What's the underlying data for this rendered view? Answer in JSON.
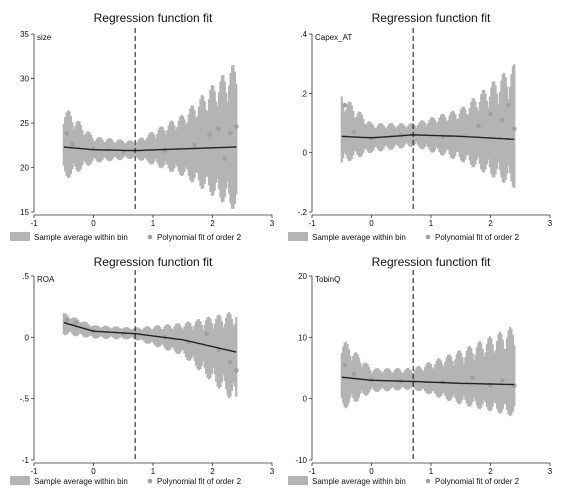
{
  "figure": {
    "legend_band_label": "Sample average within bin",
    "legend_fit_label": "Polynomial fit of order 2",
    "colors": {
      "band": "#b4b4b4",
      "points": "#a0a0a0",
      "fit": "#222222",
      "axis": "#333333"
    }
  },
  "chart_data": [
    {
      "type": "scatter",
      "title": "Regression function fit",
      "ylabel": "size",
      "xlabel": "",
      "xlim": [
        -1,
        3
      ],
      "ylim": [
        15,
        35
      ],
      "xticks": [
        "-1",
        "0",
        "1",
        "2",
        "3"
      ],
      "yticks": [
        "15",
        "20",
        "25",
        "30",
        "35"
      ],
      "ytick_values": [
        15,
        20,
        25,
        30,
        35
      ],
      "cutoff": 0.7,
      "x_range": [
        -0.5,
        2.4
      ],
      "fit": {
        "x": [
          -0.5,
          0.0,
          0.7,
          1.5,
          2.4
        ],
        "y": [
          22.3,
          22.0,
          21.9,
          22.1,
          22.3
        ]
      },
      "band": {
        "lo": [
          18.5,
          20.5,
          21.0,
          19.0,
          15.0
        ],
        "hi": [
          27.0,
          23.5,
          23.0,
          26.0,
          32.0
        ]
      },
      "points": [
        [
          -0.45,
          23.8
        ],
        [
          -0.35,
          22.6
        ],
        [
          0.0,
          22.1
        ],
        [
          0.5,
          21.8
        ],
        [
          1.2,
          21.9
        ],
        [
          1.7,
          22.5
        ],
        [
          1.95,
          23.7
        ],
        [
          2.1,
          24.3
        ],
        [
          2.2,
          21.0
        ],
        [
          2.3,
          23.9
        ],
        [
          2.4,
          24.6
        ]
      ]
    },
    {
      "type": "scatter",
      "title": "Regression function fit",
      "ylabel": "Capex_AT",
      "xlabel": "",
      "xlim": [
        -1,
        3
      ],
      "ylim": [
        -0.2,
        0.4
      ],
      "xticks": [
        "-1",
        "0",
        "1",
        "2",
        "3"
      ],
      "yticks": [
        ".4",
        ".2",
        "0",
        "-.2"
      ],
      "ytick_values": [
        0.4,
        0.2,
        0.0,
        -0.2
      ],
      "cutoff": 0.7,
      "x_range": [
        -0.5,
        2.4
      ],
      "fit": {
        "x": [
          -0.5,
          0.0,
          0.7,
          1.5,
          2.4
        ],
        "y": [
          0.055,
          0.05,
          0.06,
          0.055,
          0.045
        ]
      },
      "band": {
        "lo": [
          -0.04,
          0.0,
          0.02,
          -0.03,
          -0.12
        ],
        "hi": [
          0.2,
          0.1,
          0.1,
          0.15,
          0.3
        ]
      },
      "points": [
        [
          -0.45,
          0.16
        ],
        [
          -0.3,
          0.07
        ],
        [
          0.0,
          0.05
        ],
        [
          0.5,
          0.06
        ],
        [
          1.2,
          0.055
        ],
        [
          1.8,
          0.09
        ],
        [
          2.0,
          0.13
        ],
        [
          2.2,
          0.11
        ],
        [
          2.3,
          0.16
        ],
        [
          2.4,
          0.08
        ]
      ]
    },
    {
      "type": "scatter",
      "title": "Regression function fit",
      "ylabel": "ROA",
      "xlabel": "",
      "xlim": [
        -1,
        3
      ],
      "ylim": [
        -1,
        0.5
      ],
      "xticks": [
        "-1",
        "0",
        "1",
        "2",
        "3"
      ],
      "yticks": [
        ".5",
        "0",
        "-.5",
        "-1"
      ],
      "ytick_values": [
        0.5,
        0.0,
        -0.5,
        -1.0
      ],
      "cutoff": 0.7,
      "x_range": [
        -0.5,
        2.4
      ],
      "fit": {
        "x": [
          -0.5,
          0.0,
          0.7,
          1.5,
          2.4
        ],
        "y": [
          0.12,
          0.05,
          0.03,
          -0.02,
          -0.12
        ]
      },
      "band": {
        "lo": [
          0.02,
          -0.01,
          -0.02,
          -0.15,
          -0.55
        ],
        "hi": [
          0.2,
          0.1,
          0.08,
          0.12,
          0.22
        ]
      },
      "points": [
        [
          -0.45,
          0.14
        ],
        [
          -0.3,
          0.12
        ],
        [
          0.0,
          0.05
        ],
        [
          0.5,
          0.03
        ],
        [
          1.2,
          0.0
        ],
        [
          1.6,
          -0.04
        ],
        [
          1.9,
          0.03
        ],
        [
          2.1,
          -0.1
        ],
        [
          2.3,
          -0.2
        ],
        [
          2.4,
          -0.27
        ]
      ]
    },
    {
      "type": "scatter",
      "title": "Regression function fit",
      "ylabel": "TobinQ",
      "xlabel": "",
      "xlim": [
        -1,
        3
      ],
      "ylim": [
        -10,
        20
      ],
      "xticks": [
        "-1",
        "0",
        "1",
        "2",
        "3"
      ],
      "yticks": [
        "20",
        "10",
        "0",
        "-10"
      ],
      "ytick_values": [
        20,
        10,
        0,
        -10
      ],
      "cutoff": 0.7,
      "x_range": [
        -0.5,
        2.4
      ],
      "fit": {
        "x": [
          -0.5,
          0.0,
          0.7,
          1.5,
          2.4
        ],
        "y": [
          3.5,
          3.0,
          2.8,
          2.5,
          2.3
        ]
      },
      "band": {
        "lo": [
          -2.0,
          1.0,
          1.5,
          -1.0,
          -3.0
        ],
        "hi": [
          10.0,
          5.0,
          5.0,
          8.0,
          12.0
        ]
      },
      "points": [
        [
          -0.45,
          5.5
        ],
        [
          -0.3,
          4.0
        ],
        [
          0.0,
          3.1
        ],
        [
          0.5,
          2.8
        ],
        [
          1.2,
          2.7
        ],
        [
          1.7,
          3.4
        ],
        [
          2.0,
          2.2
        ],
        [
          2.2,
          3.0
        ],
        [
          2.4,
          2.1
        ]
      ]
    }
  ]
}
